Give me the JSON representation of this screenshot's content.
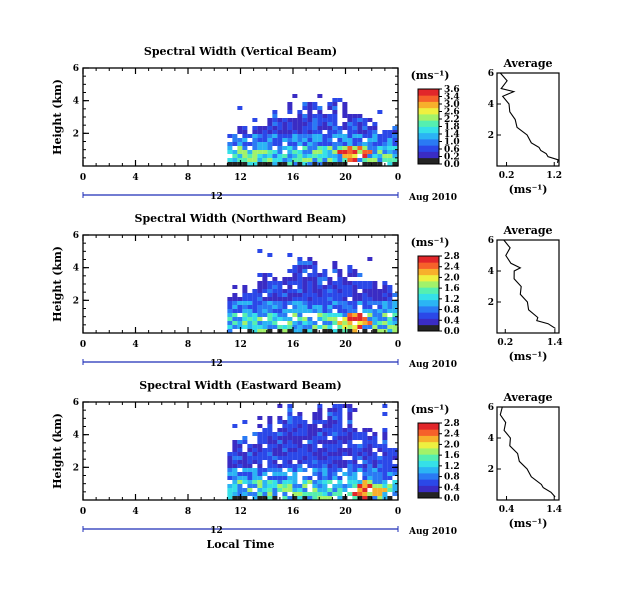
{
  "colors": [
    "#242424",
    "#3a2cc4",
    "#2b48e8",
    "#2a7af4",
    "#2bb4f4",
    "#35e0e8",
    "#55efb0",
    "#a2f26a",
    "#eef040",
    "#f7b02c",
    "#f6612a",
    "#e2262a"
  ],
  "date_label": "Aug 2010",
  "day_label": "12",
  "time_axis_label": "Local Time",
  "chart_data": [
    {
      "type": "heatmap",
      "title": "Spectral Width (Vertical Beam)",
      "ylabel": "Height (km)",
      "x_ticks": [
        "0",
        "4",
        "8",
        "12",
        "16",
        "20",
        "0"
      ],
      "y_ticks": [
        "6",
        "4",
        "2"
      ],
      "xlim": [
        0,
        24
      ],
      "ylim": [
        0,
        6
      ],
      "data_start_hour": 11.0,
      "top_height_km": 3.8,
      "hot_spots": [
        [
          20.5,
          1.0
        ]
      ],
      "colorbar": {
        "unit": "(ms⁻¹)",
        "labels": [
          "3.6",
          "3.4",
          "3.0",
          "2.6",
          "2.2",
          "1.8",
          "1.4",
          "1.0",
          "0.6",
          "0.2",
          "0.0"
        ],
        "range": [
          0,
          3.6
        ]
      },
      "average": {
        "title": "Average",
        "xlabel": "(ms⁻¹)",
        "x_ticks": [
          "0.2",
          "1.2"
        ],
        "y_ticks": [
          "6",
          "4",
          "2"
        ],
        "xlim": [
          0,
          1.3
        ],
        "ylim": [
          0,
          6
        ],
        "profile": [
          [
            0.2,
            1.3
          ],
          [
            0.4,
            1.25
          ],
          [
            0.6,
            1.1
          ],
          [
            0.8,
            1.0
          ],
          [
            1.0,
            0.95
          ],
          [
            1.2,
            0.85
          ],
          [
            1.5,
            0.75
          ],
          [
            2.0,
            0.6
          ],
          [
            2.5,
            0.45
          ],
          [
            3.0,
            0.35
          ],
          [
            3.5,
            0.3
          ],
          [
            4.0,
            0.22
          ],
          [
            4.5,
            0.15
          ],
          [
            4.8,
            0.32
          ],
          [
            5.0,
            0.12
          ],
          [
            5.5,
            0.18
          ],
          [
            6.0,
            0.1
          ]
        ]
      }
    },
    {
      "type": "heatmap",
      "title": "Spectral Width (Northward Beam)",
      "ylabel": "Height (km)",
      "x_ticks": [
        "0",
        "4",
        "8",
        "12",
        "16",
        "20",
        "0"
      ],
      "y_ticks": [
        "6",
        "4",
        "2"
      ],
      "xlim": [
        0,
        24
      ],
      "ylim": [
        0,
        6
      ],
      "data_start_hour": 11.0,
      "top_height_km": 4.5,
      "hot_spots": [
        [
          20.5,
          0.8
        ]
      ],
      "colorbar": {
        "unit": "(ms⁻¹)",
        "labels": [
          "2.8",
          "2.4",
          "2.0",
          "1.6",
          "1.2",
          "0.8",
          "0.4",
          "0.0"
        ],
        "range": [
          0,
          2.8
        ]
      },
      "average": {
        "title": "Average",
        "xlabel": "(ms⁻¹)",
        "x_ticks": [
          "0.2",
          "1.4"
        ],
        "y_ticks": [
          "6",
          "4",
          "2"
        ],
        "xlim": [
          0,
          1.5
        ],
        "ylim": [
          0,
          6
        ],
        "profile": [
          [
            0.3,
            1.45
          ],
          [
            0.6,
            1.2
          ],
          [
            0.8,
            1.0
          ],
          [
            1.0,
            0.95
          ],
          [
            1.5,
            0.8
          ],
          [
            2.0,
            0.7
          ],
          [
            2.5,
            0.6
          ],
          [
            3.0,
            0.55
          ],
          [
            3.5,
            0.45
          ],
          [
            4.0,
            0.38
          ],
          [
            4.2,
            0.6
          ],
          [
            4.5,
            0.3
          ],
          [
            5.0,
            0.25
          ],
          [
            5.5,
            0.28
          ],
          [
            6.0,
            0.2
          ]
        ]
      }
    },
    {
      "type": "heatmap",
      "title": "Spectral Width (Eastward Beam)",
      "ylabel": "Height (km)",
      "x_ticks": [
        "0",
        "4",
        "8",
        "12",
        "16",
        "20",
        "0"
      ],
      "y_ticks": [
        "6",
        "4",
        "2"
      ],
      "xlim": [
        0,
        24
      ],
      "ylim": [
        0,
        6
      ],
      "data_start_hour": 11.0,
      "top_height_km": 5.8,
      "hot_spots": [
        [
          21.5,
          0.7
        ]
      ],
      "colorbar": {
        "unit": "(ms⁻¹)",
        "labels": [
          "2.8",
          "2.4",
          "2.0",
          "1.6",
          "1.2",
          "0.8",
          "0.4",
          "0.0"
        ],
        "range": [
          0,
          2.8
        ]
      },
      "average": {
        "title": "Average",
        "xlabel": "(ms⁻¹)",
        "x_ticks": [
          "0.4",
          "1.4"
        ],
        "y_ticks": [
          "6",
          "4",
          "2"
        ],
        "xlim": [
          0.2,
          1.5
        ],
        "ylim": [
          0,
          6
        ],
        "profile": [
          [
            0.2,
            1.45
          ],
          [
            0.5,
            1.3
          ],
          [
            0.8,
            1.2
          ],
          [
            1.0,
            1.1
          ],
          [
            1.5,
            0.95
          ],
          [
            2.0,
            0.8
          ],
          [
            2.5,
            0.7
          ],
          [
            3.0,
            0.6
          ],
          [
            3.5,
            0.5
          ],
          [
            4.0,
            0.45
          ],
          [
            4.5,
            0.38
          ],
          [
            5.0,
            0.35
          ],
          [
            5.5,
            0.3
          ],
          [
            6.0,
            0.28
          ]
        ]
      }
    }
  ]
}
